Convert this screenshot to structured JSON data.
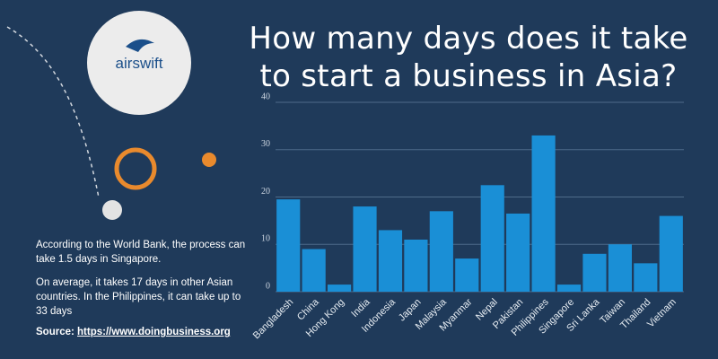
{
  "chart_data": {
    "type": "bar",
    "title": "How many days does it take to start a business in Asia?",
    "categories": [
      "Bangladesh",
      "China",
      "Hong Kong",
      "India",
      "Indonesia",
      "Japan",
      "Malaysia",
      "Myanmar",
      "Nepal",
      "Pakistan",
      "Philippines",
      "Singapore",
      "Sri Lanka",
      "Taiwan",
      "Thailand",
      "Vietnam"
    ],
    "values": [
      19.5,
      9,
      1.5,
      18,
      13,
      11,
      17,
      7,
      22.5,
      16.5,
      33,
      1.5,
      8,
      10,
      6,
      16
    ],
    "color": "#1a8fd6",
    "ylim": [
      0,
      40
    ],
    "yticks": [
      0,
      10,
      20,
      30,
      40
    ],
    "grid": true
  },
  "sidebar": {
    "logo": "airswift",
    "paragraphs": [
      "According to the World Bank, the process can take 1.5 days in Singapore.",
      "On average, it takes 17 days in other Asian countries. In the Philippines, it can take up to 33 days"
    ],
    "source_label": "Source:",
    "source_url": "https://www.doingbusiness.org"
  }
}
